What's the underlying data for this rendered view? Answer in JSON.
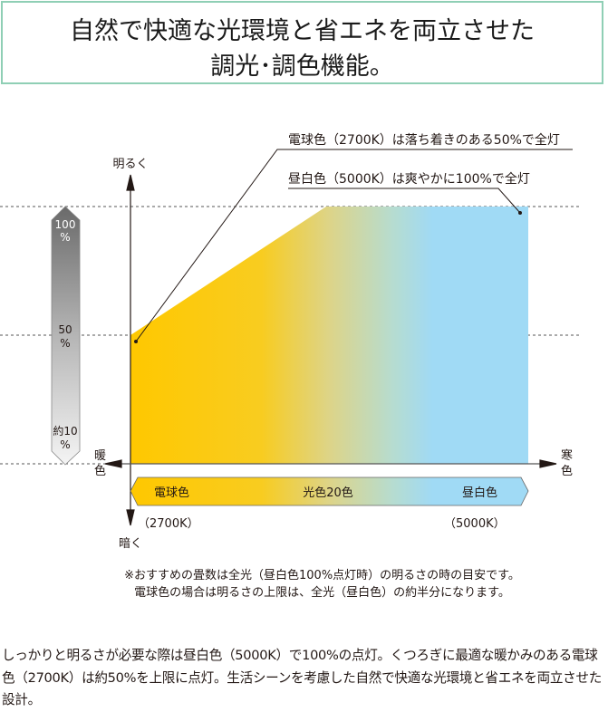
{
  "header": {
    "title_line1": "自然で快適な光環境と省エネを両立させた",
    "title_line2": "調光･調色機能。",
    "border_color": "#8fcfb5"
  },
  "diagram": {
    "callout_warm": "電球色（2700K）は落ち着きのある50%で全灯",
    "callout_cool": "昼白色（5000K）は爽やかに100%で全灯",
    "axis_bright": "明るく",
    "axis_dark": "暗く",
    "axis_warm": [
      "暖",
      "色"
    ],
    "axis_cool": [
      "寒",
      "色"
    ],
    "gauge_labels": [
      [
        "100",
        "%"
      ],
      [
        "50",
        "%"
      ],
      [
        "約10",
        "%"
      ]
    ],
    "band_labels": {
      "left": "電球色",
      "center": "光色20色",
      "right": "昼白色"
    },
    "kelvin_left": "（2700K）",
    "kelvin_right": "（5000K）",
    "colors": {
      "warm": "#FFC800",
      "cool": "#A0DAF5"
    },
    "levels": {
      "warm_max_percent": 50,
      "cool_max_percent": 100
    }
  },
  "notes": [
    "※おすすめの畳数は全光（昼白色100%点灯時）の明るさの時の目安です。",
    "電球色の場合は明るさの上限は、全光（昼白色）の約半分になります。"
  ],
  "paragraph": "しっかりと明るさが必要な際は昼白色（5000K）で100%の点灯。くつろぎに最適な暖かみのある電球色（2700K）は約50%を上限に点灯。生活シーンを考慮した自然で快適な光環境と省エネを両立させた設計。"
}
